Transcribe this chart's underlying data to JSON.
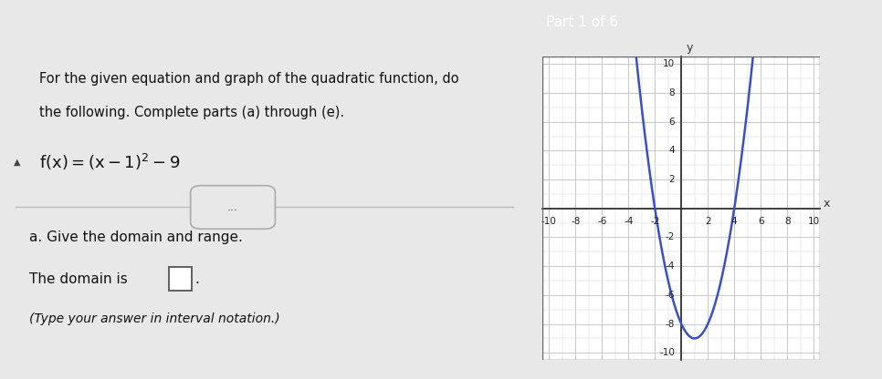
{
  "title_text1": "For the given equation and graph of the quadratic function, do",
  "title_text2": "the following. Complete parts (a) through (e).",
  "equation_plain": "f(x) = (x− 1)",
  "part_a_label": "a. Give the domain and range.",
  "domain_text": "The domain is",
  "interval_note": "(Type your answer in interval notation.)",
  "bg_color": "#e8e8e8",
  "header_color": "#2e8fa3",
  "text_color": "#111111",
  "curve_color": "#3a50c8",
  "part1_text": "Part 1 of 6",
  "left_accent_color": "#2a6496",
  "separator_color": "#bbbbbb",
  "graph_border_color": "#666666",
  "axis_color": "#333333",
  "grid_minor_color": "#d8d8d8",
  "grid_major_color": "#bbbbbb",
  "tick_label_color": "#222222"
}
